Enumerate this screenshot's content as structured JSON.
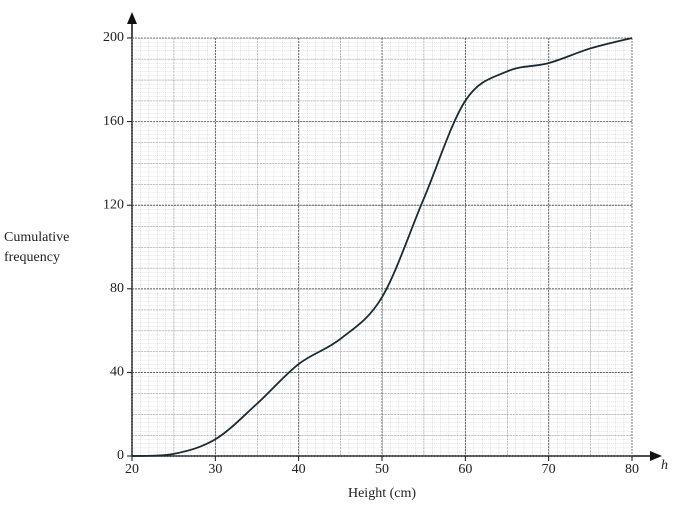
{
  "chart_data": {
    "type": "line",
    "x_label": "Height (cm)",
    "y_label": "Cumulative frequency",
    "x_variable": "h",
    "x": [
      20,
      25,
      30,
      35,
      40,
      45,
      50,
      55,
      60,
      65,
      70,
      75,
      80
    ],
    "series": [
      {
        "color": "#1a2a33",
        "values": [
          0,
          1,
          8,
          25,
          44,
          56,
          76,
          123,
          170,
          184,
          188,
          195,
          200
        ]
      }
    ],
    "xlim": [
      20,
      80
    ],
    "ylim": [
      0,
      200
    ],
    "xticks": [
      20,
      30,
      40,
      50,
      60,
      70,
      80
    ],
    "yticks": [
      0,
      40,
      80,
      120,
      160,
      200
    ],
    "grid": true
  }
}
